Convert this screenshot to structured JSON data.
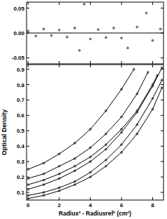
{
  "chart_data": [
    {
      "type": "scatter",
      "xlim": [
        -0.1,
        8.7
      ],
      "xticks": [
        0,
        2,
        4,
        6,
        8
      ],
      "ylim": [
        -0.062,
        0.062
      ],
      "yticks": [
        -0.05,
        {
          "value": 0,
          "label": "0.00"
        },
        0.05
      ],
      "tick_labels": "y",
      "series": [
        {
          "color": "#777777",
          "marker": "circle",
          "x": [
            0,
            0.5,
            1,
            1.5,
            2,
            2.5,
            3,
            3.3,
            3.6,
            4,
            4.5,
            5,
            5.5,
            6,
            6.4,
            7,
            7.6,
            8,
            8.5
          ],
          "values": [
            0.004,
            -0.006,
            0.008,
            -0.005,
            0.006,
            -0.008,
            0.01,
            -0.035,
            0.058,
            -0.012,
            0.007,
            -0.009,
            0.01,
            -0.01,
            -0.03,
            0.012,
            0.04,
            -0.015,
            0.008
          ]
        }
      ]
    },
    {
      "type": "scatter",
      "x_label": "Radius² - Radiusref² (cm²)",
      "y_label": "Optical Density",
      "xlim": [
        -0.1,
        8.7
      ],
      "xticks": [
        0,
        2,
        4,
        6,
        8
      ],
      "ylim": [
        0.05,
        0.93
      ],
      "yticks": [
        0.1,
        0.2,
        0.3,
        0.4,
        0.5,
        0.6,
        0.7,
        0.8,
        0.9
      ],
      "series": [
        {
          "color": "#777777",
          "marker": "circle",
          "line_style": "solid",
          "x": [
            0,
            1,
            2,
            3,
            4,
            5,
            6,
            6.8
          ],
          "values": [
            0.25,
            0.29,
            0.35,
            0.42,
            0.51,
            0.63,
            0.77,
            0.9
          ]
        },
        {
          "color": "#777777",
          "marker": "circle",
          "line_style": "solid",
          "x": [
            0,
            1,
            2,
            3,
            4,
            5,
            6,
            7,
            7.7
          ],
          "values": [
            0.19,
            0.22,
            0.27,
            0.32,
            0.39,
            0.48,
            0.59,
            0.74,
            0.88
          ]
        },
        {
          "color": "#777777",
          "marker": "circle",
          "line_style": "solid",
          "x": [
            0,
            1,
            2,
            3,
            4,
            5,
            6,
            7,
            8,
            8.3
          ],
          "values": [
            0.15,
            0.18,
            0.22,
            0.27,
            0.33,
            0.41,
            0.51,
            0.63,
            0.8,
            0.86
          ]
        },
        {
          "color": "#777777",
          "marker": "circle",
          "line_style": "solid",
          "x": [
            0,
            1,
            2,
            3,
            4,
            5,
            6,
            7,
            8,
            8.6
          ],
          "values": [
            0.12,
            0.15,
            0.19,
            0.24,
            0.3,
            0.38,
            0.49,
            0.62,
            0.79,
            0.91
          ]
        },
        {
          "color": "#777777",
          "marker": "circle",
          "line_style": "solid",
          "x": [
            0,
            1,
            2,
            3,
            4,
            5,
            6,
            7,
            8,
            8.6
          ],
          "values": [
            0.08,
            0.1,
            0.13,
            0.17,
            0.23,
            0.31,
            0.41,
            0.54,
            0.71,
            0.83
          ]
        },
        {
          "color": "#777777",
          "marker": "circle",
          "line_style": "solid",
          "x": [
            0,
            1,
            2,
            3,
            4,
            5,
            6,
            7,
            8,
            8.6
          ],
          "values": [
            0.06,
            0.08,
            0.11,
            0.15,
            0.2,
            0.27,
            0.36,
            0.48,
            0.64,
            0.78
          ]
        }
      ]
    }
  ]
}
